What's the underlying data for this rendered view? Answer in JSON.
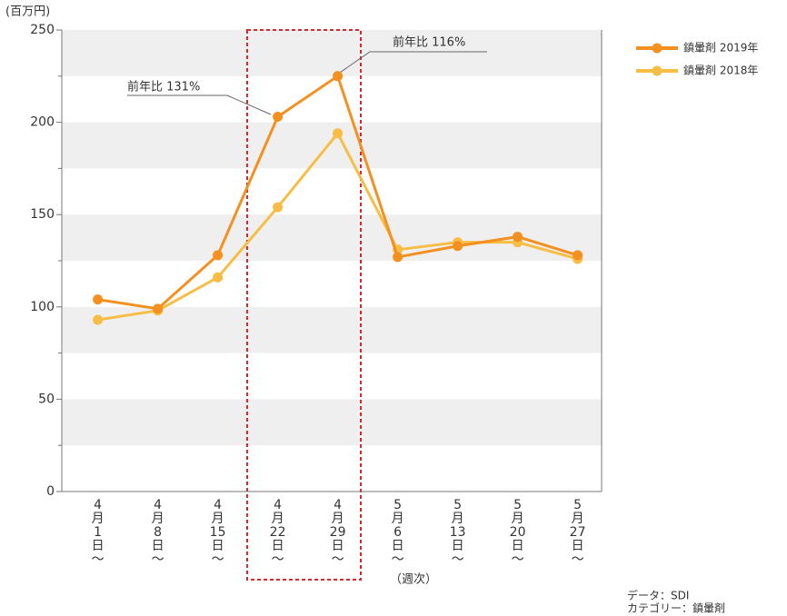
{
  "chart_data": {
    "type": "line",
    "y_unit": "(百万円)",
    "x_note": "（週次）",
    "categories": [
      "4月1日〜",
      "4月8日〜",
      "4月15日〜",
      "4月22日〜",
      "4月29日〜",
      "5月6日〜",
      "5月13日〜",
      "5月20日〜",
      "5月27日〜"
    ],
    "series": [
      {
        "name": "鎮暈剤 2019年",
        "color": "#f39020",
        "values": [
          104,
          99,
          128,
          203,
          225,
          127,
          133,
          138,
          128
        ]
      },
      {
        "name": "鎮暈剤 2018年",
        "color": "#f7bd45",
        "values": [
          93,
          98,
          116,
          154,
          194,
          131,
          135,
          135,
          126
        ]
      }
    ],
    "ylim": [
      0,
      250
    ],
    "yticks": [
      0,
      50,
      100,
      150,
      200,
      250
    ],
    "annotations": [
      "前年比 131%",
      "前年比 116%"
    ],
    "source": [
      "データ：SDI",
      "カテゴリー：鎮暈剤"
    ]
  }
}
